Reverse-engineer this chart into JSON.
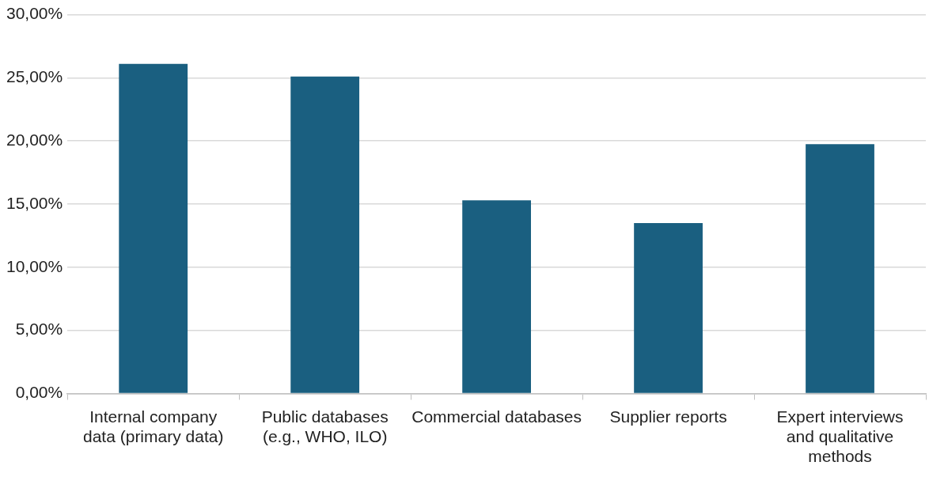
{
  "chart_data": {
    "type": "bar",
    "categories": [
      "Internal company data (primary data)",
      "Public databases (e.g., WHO, ILO)",
      "Commercial databases",
      "Supplier reports",
      "Expert interviews and qualitative methods"
    ],
    "values": [
      26.1,
      25.1,
      15.3,
      13.5,
      19.75
    ],
    "color": "#1a5f80",
    "ylim": [
      0,
      30
    ],
    "yticks": [
      {
        "value": 0,
        "label": "0,00%"
      },
      {
        "value": 5,
        "label": "5,00%"
      },
      {
        "value": 10,
        "label": "10,00%"
      },
      {
        "value": 15,
        "label": "15,00%"
      },
      {
        "value": 20,
        "label": "20,00%"
      },
      {
        "value": 25,
        "label": "25,00%"
      },
      {
        "value": 30,
        "label": "30,00%"
      }
    ],
    "grid": "y"
  }
}
